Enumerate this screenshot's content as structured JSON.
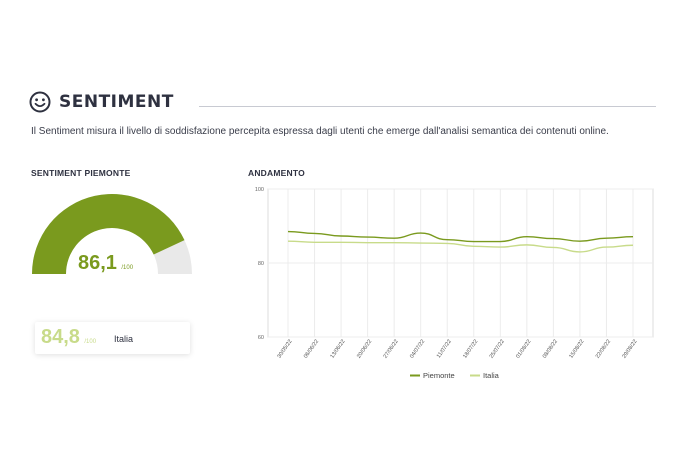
{
  "header": {
    "title": "SENTIMENT",
    "icon": "smiley-icon"
  },
  "description": "Il Sentiment misura il livello di soddisfazione percepita espressa dagli utenti che emerge dall'analisi semantica dei contenuti online.",
  "piemonte": {
    "title": "SENTIMENT PIEMONTE",
    "value": "86,1",
    "suffix": "/100",
    "fraction": 0.861
  },
  "italia": {
    "value": "84,8",
    "suffix": "/100",
    "label": "Italia"
  },
  "trend": {
    "title": "ANDAMENTO"
  },
  "colors": {
    "piemonte": "#7a9a1e",
    "italia": "#c8db8a",
    "gauge_track": "#e9e9e9",
    "accent_dark": "#2e3140"
  },
  "chart_data": {
    "type": "line",
    "x": [
      "30/05/22",
      "06/06/22",
      "13/06/22",
      "20/06/22",
      "27/06/22",
      "04/07/22",
      "11/07/22",
      "18/07/22",
      "25/07/22",
      "01/08/22",
      "08/08/22",
      "15/08/22",
      "22/08/22",
      "29/08/22"
    ],
    "series": [
      {
        "name": "Piemonte",
        "values": [
          88.5,
          88.0,
          87.3,
          87.0,
          86.7,
          88.1,
          86.3,
          85.8,
          85.8,
          87.1,
          86.6,
          85.9,
          86.7,
          87.1
        ]
      },
      {
        "name": "Italia",
        "values": [
          85.9,
          85.6,
          85.6,
          85.5,
          85.5,
          85.4,
          85.3,
          84.5,
          84.3,
          84.9,
          84.2,
          83.0,
          84.3,
          84.8
        ]
      }
    ],
    "ylim": [
      60,
      100
    ],
    "yticks": [
      60,
      80,
      100
    ],
    "grid": true,
    "legend": "bottom",
    "xlabel": "",
    "ylabel": ""
  }
}
